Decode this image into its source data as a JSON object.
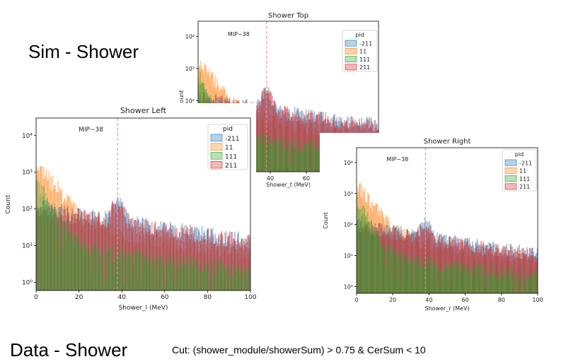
{
  "slide": {
    "sim_title": "Sim - Shower",
    "data_title": "Data - Shower",
    "cut_text": "Cut: (shower_module/showerSum) > 0.75 & CerSum < 10"
  },
  "colors": {
    "-211": "#1f77b4",
    "11": "#ff7f0e",
    "111": "#2ca02c",
    "211": "#d62728",
    "mip_line": "#f08080"
  },
  "chart_data": [
    {
      "id": "top",
      "type": "histogram",
      "title": "Shower Top",
      "xlabel": "Shower_t (MeV)",
      "ylabel": "Count",
      "ylabel_visible": "ount",
      "log_y": true,
      "xlim": [
        0,
        100
      ],
      "ylim": [
        0.6,
        30000
      ],
      "x_ticks": [
        40,
        60
      ],
      "y_ticks": [
        100,
        1000,
        10000
      ],
      "y_tick_labels": [
        "10²",
        "10³",
        "10⁴"
      ],
      "annotation": {
        "text": "MIP~38",
        "x": 38
      },
      "legend": {
        "title": "pid",
        "entries": [
          "-211",
          "11",
          "111",
          "211"
        ],
        "position": "top-right"
      },
      "peak": 38,
      "pion_base": 60
    },
    {
      "id": "left",
      "type": "histogram",
      "title": "Shower Left",
      "xlabel": "Shower_l (MeV)",
      "ylabel": "Count",
      "log_y": true,
      "xlim": [
        0,
        100
      ],
      "ylim": [
        0.6,
        30000
      ],
      "x_ticks": [
        0,
        20,
        40,
        60,
        80,
        100
      ],
      "y_ticks": [
        1,
        10,
        100,
        1000,
        10000
      ],
      "y_tick_labels": [
        "10⁰",
        "10¹",
        "10²",
        "10³",
        "10⁴"
      ],
      "annotation": {
        "text": "MIP~38",
        "x": 38
      },
      "legend": {
        "title": "pid",
        "entries": [
          "-211",
          "11",
          "111",
          "211"
        ],
        "position": "top-right"
      },
      "peak": 38,
      "pion_base": 45
    },
    {
      "id": "right",
      "type": "histogram",
      "title": "Shower Right",
      "xlabel": "Shower_r (MeV)",
      "ylabel": "Count",
      "log_y": true,
      "xlim": [
        0,
        100
      ],
      "ylim": [
        0.6,
        30000
      ],
      "x_ticks": [
        0,
        20,
        40,
        60,
        80,
        100
      ],
      "y_ticks": [
        1,
        10,
        100,
        1000,
        10000
      ],
      "y_tick_labels": [
        "10⁰",
        "10¹",
        "10²",
        "10³",
        "10⁴"
      ],
      "annotation": {
        "text": "MIP~38",
        "x": 38
      },
      "legend": {
        "title": "pid",
        "entries": [
          "-211",
          "11",
          "111",
          "211"
        ],
        "position": "top-right"
      },
      "peak": 38,
      "pion_base": 35
    }
  ]
}
